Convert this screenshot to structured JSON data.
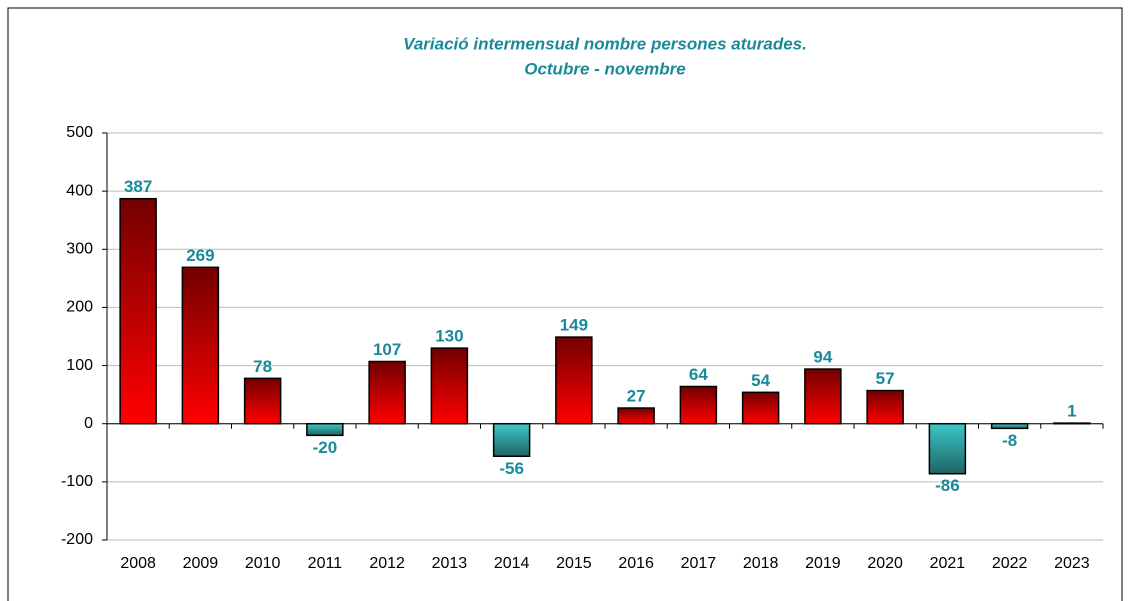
{
  "chart_data": {
    "type": "bar",
    "title": "Variació intermensual nombre persones aturades.",
    "subtitle": "Octubre - novembre",
    "categories": [
      "2008",
      "2009",
      "2010",
      "2011",
      "2012",
      "2013",
      "2014",
      "2015",
      "2016",
      "2017",
      "2018",
      "2019",
      "2020",
      "2021",
      "2022",
      "2023"
    ],
    "values": [
      387,
      269,
      78,
      -20,
      107,
      130,
      -56,
      149,
      27,
      64,
      54,
      94,
      57,
      -86,
      -8,
      1
    ],
    "color": "#ff0000",
    "negative_color": "#3cc8c8",
    "ylim": [
      -200,
      500
    ],
    "yticks": [
      -200,
      -100,
      0,
      100,
      200,
      300,
      400,
      500
    ],
    "grid": true
  }
}
